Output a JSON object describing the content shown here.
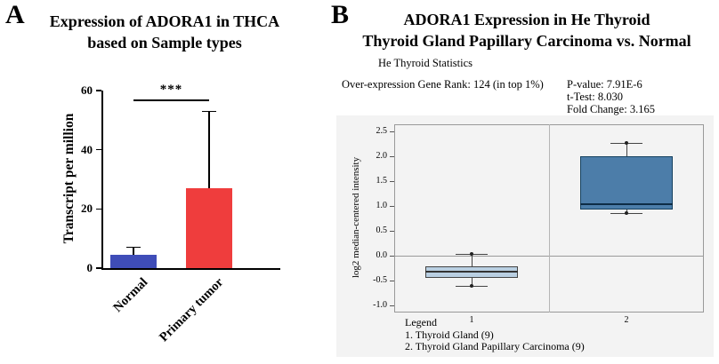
{
  "panelA": {
    "label": "A",
    "title_line1": "Expression of ADORA1 in THCA",
    "title_line2": "based on Sample types"
  },
  "panelB": {
    "label": "B",
    "title_line1": "ADORA1 Expression in He Thyroid",
    "title_line2": "Thyroid Gland Papillary Carcinoma vs. Normal",
    "subtitle": "He Thyroid Statistics",
    "stats": {
      "gene_rank": "Over-expression Gene Rank: 124 (in top 1%)",
      "p_value": "P-value: 7.91E-6",
      "t_test": "t-Test: 8.030",
      "fold_change": "Fold Change: 3.165"
    },
    "legend": {
      "title": "Legend",
      "items": [
        "1. Thyroid Gland (9)",
        "2. Thyroid Gland Papillary Carcinoma (9)"
      ]
    }
  },
  "chart_data": [
    {
      "type": "bar",
      "title": "Expression of ADORA1 in THCA based on Sample types",
      "categories": [
        "Normal",
        "Primary tumor"
      ],
      "values": [
        4.5,
        27
      ],
      "error_high": [
        7,
        53
      ],
      "ylabel": "Transcript per million",
      "xlabel": "",
      "ylim": [
        0,
        60
      ],
      "yticks": [
        0,
        20,
        40,
        60
      ],
      "bar_colors": [
        "#3f4db8",
        "#ef3d3d"
      ],
      "significance": "***",
      "significance_y": 57,
      "grid": false,
      "legend_position": "none"
    },
    {
      "type": "box",
      "title": "ADORA1 Expression in He Thyroid: Thyroid Gland Papillary Carcinoma vs. Normal",
      "ylabel": "log2 median-centered intensity",
      "xlabel": "",
      "ylim": [
        -1.15,
        2.65
      ],
      "yticks": [
        -1.0,
        -0.5,
        0.0,
        0.5,
        1.0,
        1.5,
        2.0,
        2.5
      ],
      "categories": [
        "1",
        "2"
      ],
      "boxes": [
        {
          "label": "1",
          "whisker_low": -0.62,
          "q1": -0.45,
          "median": -0.33,
          "q3": -0.22,
          "whisker_high": 0.03,
          "fill": "#b9cfe2",
          "border": "#444444",
          "median_color": "#333333"
        },
        {
          "label": "2",
          "whisker_low": 0.85,
          "q1": 0.93,
          "median": 1.03,
          "q3": 2.0,
          "whisker_high": 2.27,
          "fill": "#4c7da9",
          "border": "#16415f",
          "median_color": "#0d2c45"
        }
      ],
      "zero_line": 0.0,
      "grid": "group-divider",
      "legend_position": "bottom"
    }
  ]
}
